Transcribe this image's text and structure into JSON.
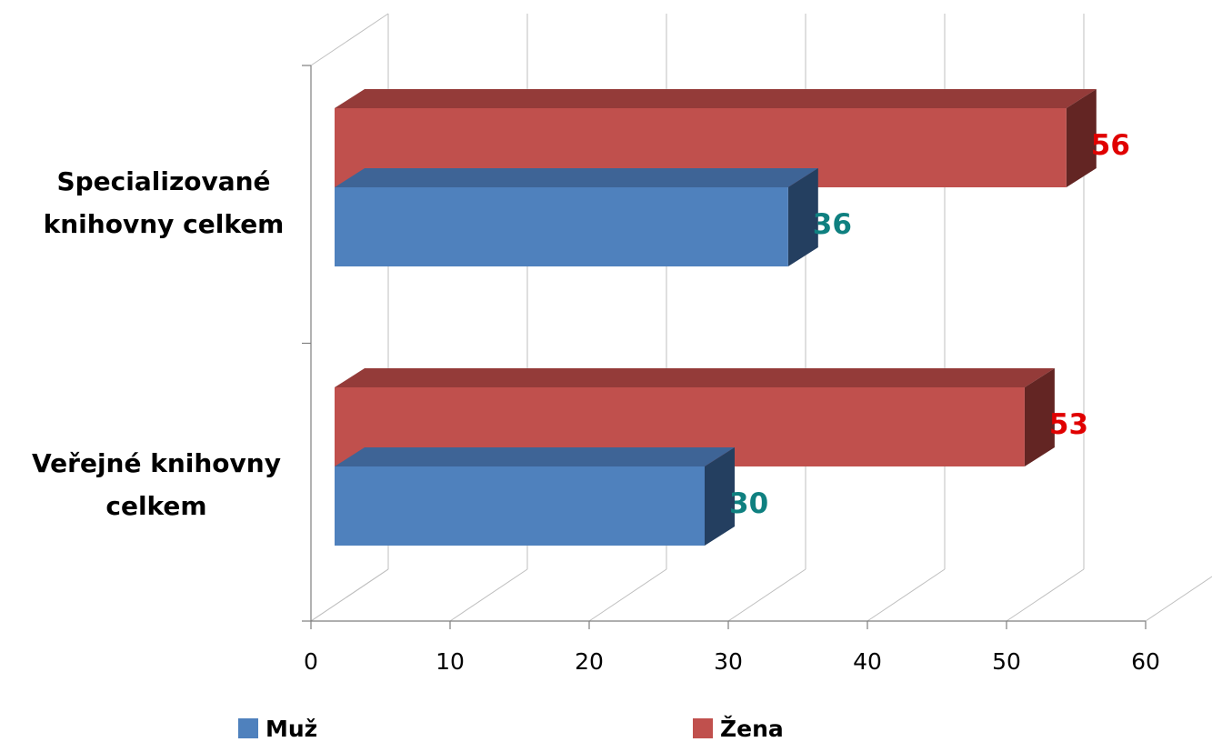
{
  "chart_data": {
    "type": "bar",
    "orientation": "horizontal",
    "style": "3d",
    "categories": [
      "Veřejné knihovny celkem",
      "Specializované knihovny celkem"
    ],
    "category_lines": [
      [
        "Veřejné knihovny",
        "celkem"
      ],
      [
        "Specializované",
        "knihovny celkem"
      ]
    ],
    "series": [
      {
        "name": "Muž",
        "values": [
          30,
          36
        ],
        "color": "#4F81BD",
        "side_color": "#243F60",
        "top_color": "#3E6496",
        "label_color": "#0F8080"
      },
      {
        "name": "Žena",
        "values": [
          53,
          56
        ],
        "color": "#C0504D",
        "side_color": "#632523",
        "top_color": "#943B39",
        "label_color": "#E00000"
      }
    ],
    "xlim": [
      0,
      60
    ],
    "xticks": [
      "0",
      "10",
      "20",
      "30",
      "40",
      "50",
      "60"
    ],
    "grid": true,
    "legend_position": "bottom"
  }
}
